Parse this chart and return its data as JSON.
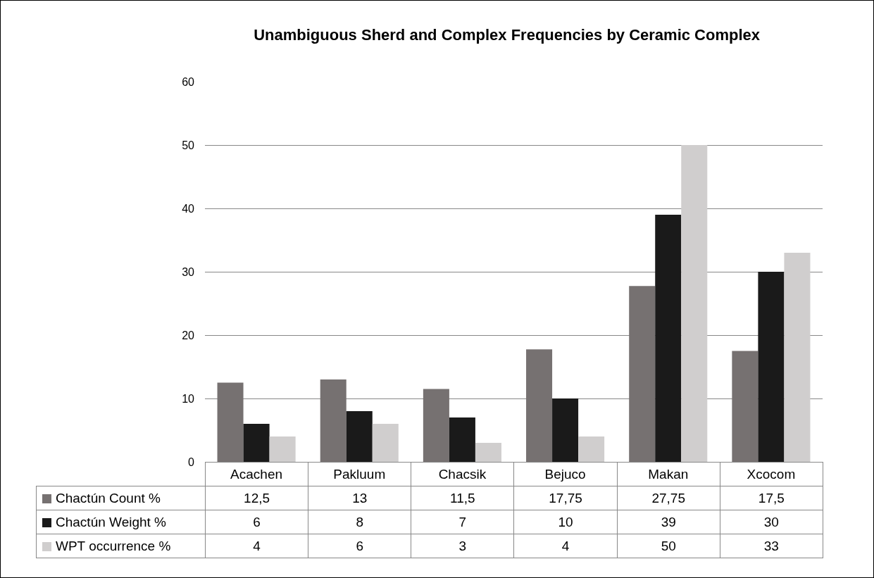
{
  "chart_data": {
    "type": "bar",
    "title": "Unambiguous Sherd and Complex Frequencies by Ceramic Complex",
    "categories": [
      "Acachen",
      "Pakluum",
      "Chacsik",
      "Bejuco",
      "Makan",
      "Xcocom"
    ],
    "series": [
      {
        "name": "Chactún Count %",
        "color": "#767171",
        "values": [
          12.5,
          13,
          11.5,
          17.75,
          27.75,
          17.5
        ],
        "value_labels": [
          "12,5",
          "13",
          "11,5",
          "17,75",
          "27,75",
          "17,5"
        ]
      },
      {
        "name": "Chactún Weight %",
        "color": "#1a1a1a",
        "values": [
          6,
          8,
          7,
          10,
          39,
          30
        ],
        "value_labels": [
          "6",
          "8",
          "7",
          "10",
          "39",
          "30"
        ]
      },
      {
        "name": "WPT occurrence %",
        "color": "#d0cece",
        "values": [
          4,
          6,
          3,
          4,
          50,
          33
        ],
        "value_labels": [
          "4",
          "6",
          "3",
          "4",
          "50",
          "33"
        ]
      }
    ],
    "ylim": [
      0,
      60
    ],
    "yticks": [
      0,
      10,
      20,
      30,
      40,
      50,
      60
    ],
    "grid": "y",
    "legend": "bottom left"
  }
}
